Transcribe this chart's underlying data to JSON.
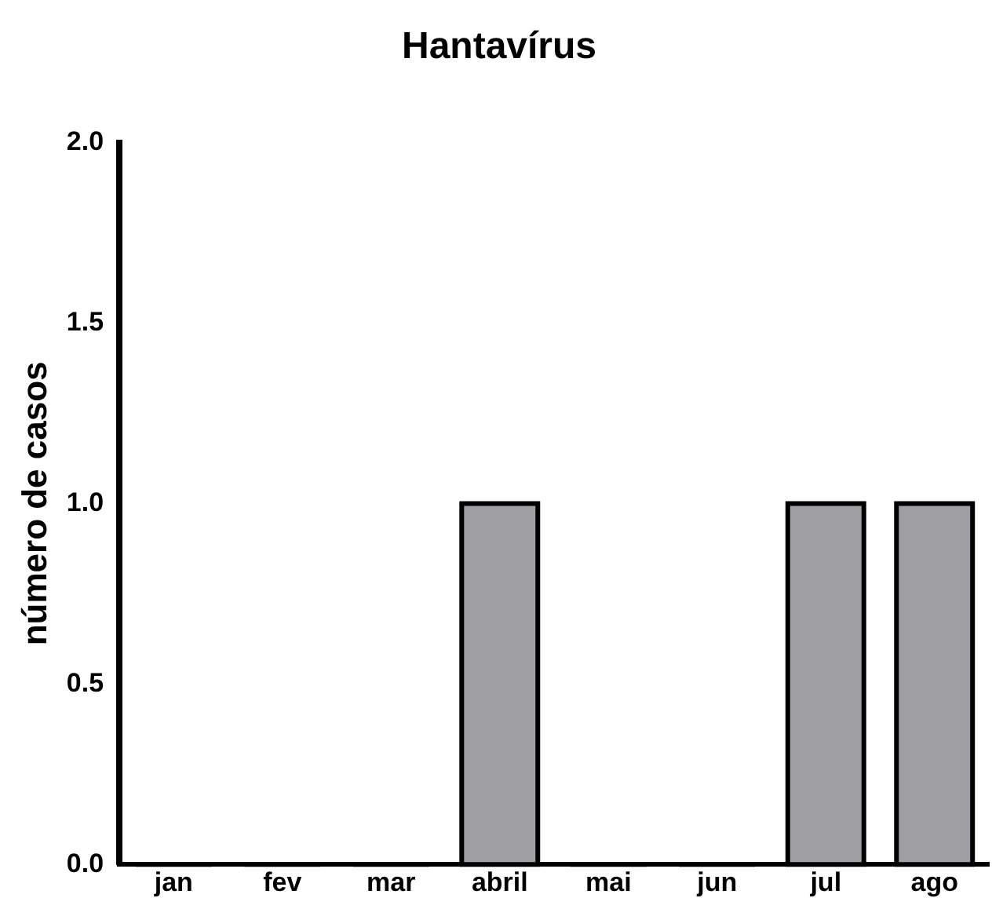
{
  "chart_data": {
    "type": "bar",
    "title": "Hantavírus",
    "ylabel": "número de casos",
    "categories": [
      "jan",
      "fev",
      "mar",
      "abril",
      "mai",
      "jun",
      "jul",
      "ago"
    ],
    "values": [
      0,
      0,
      0,
      1,
      0,
      0,
      1,
      1
    ],
    "color": "#a0a0a4",
    "ylim": [
      0,
      2
    ],
    "yticks": [
      {
        "value": 0,
        "label": "0.0"
      },
      0.5,
      {
        "value": 1,
        "label": "1.0"
      },
      1.5,
      {
        "value": 2,
        "label": "2.0"
      }
    ],
    "grid": false,
    "legend": false
  }
}
